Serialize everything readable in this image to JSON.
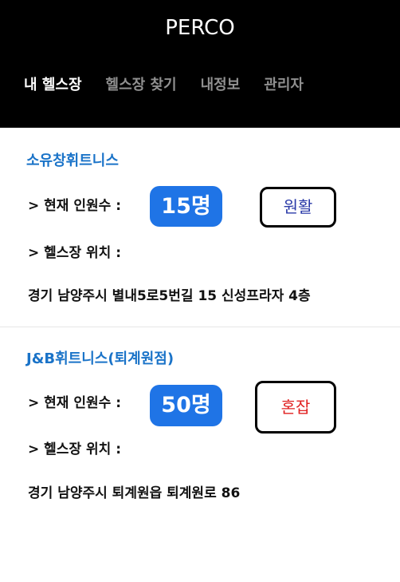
{
  "header": {
    "title": "PERCO",
    "tabs": [
      {
        "label": "내 헬스장",
        "active": true
      },
      {
        "label": "헬스장 찾기",
        "active": false
      },
      {
        "label": "내정보",
        "active": false
      },
      {
        "label": "관리자",
        "active": false
      }
    ]
  },
  "colors": {
    "header_bg": "#000000",
    "gym_name": "#1a73c8",
    "badge_bg": "#1f74e6",
    "status_smooth": "#2a3aa8",
    "status_busy": "#e02020"
  },
  "gyms": [
    {
      "name": "소유창휘트니스",
      "count_label": "> 현재 인원수 :",
      "count": "15명",
      "status": "원활",
      "location_label": "> 헬스장 위치 :",
      "address": "경기 남양주시 별내5로5번길 15 신성프라자 4층"
    },
    {
      "name": "J&B휘트니스(퇴계원점)",
      "count_label": "> 현재 인원수 :",
      "count": "50명",
      "status": "혼잡",
      "location_label": "> 헬스장 위치 :",
      "address": "경기 남양주시 퇴계원읍 퇴계원로 86"
    }
  ]
}
